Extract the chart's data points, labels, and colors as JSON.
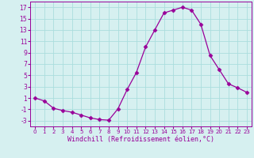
{
  "x": [
    0,
    1,
    2,
    3,
    4,
    5,
    6,
    7,
    8,
    9,
    10,
    11,
    12,
    13,
    14,
    15,
    16,
    17,
    18,
    19,
    20,
    21,
    22,
    23
  ],
  "y": [
    1,
    0.5,
    -0.8,
    -1.2,
    -1.5,
    -2.0,
    -2.5,
    -2.8,
    -2.9,
    -0.9,
    2.5,
    5.5,
    10.0,
    13.0,
    16.0,
    16.5,
    17.0,
    16.5,
    14.0,
    8.5,
    6.0,
    3.5,
    2.8,
    2.0
  ],
  "line_color": "#990099",
  "marker": "D",
  "marker_size": 2.5,
  "bg_color": "#d6f0f0",
  "grid_color": "#aadddd",
  "xlabel": "Windchill (Refroidissement éolien,°C)",
  "xlim": [
    -0.5,
    23.5
  ],
  "ylim": [
    -4,
    18
  ],
  "yticks": [
    -3,
    -1,
    1,
    3,
    5,
    7,
    9,
    11,
    13,
    15,
    17
  ],
  "xticks": [
    0,
    1,
    2,
    3,
    4,
    5,
    6,
    7,
    8,
    9,
    10,
    11,
    12,
    13,
    14,
    15,
    16,
    17,
    18,
    19,
    20,
    21,
    22,
    23
  ],
  "x_fontsize": 5.0,
  "y_fontsize": 5.5,
  "xlabel_fontsize": 6.0
}
